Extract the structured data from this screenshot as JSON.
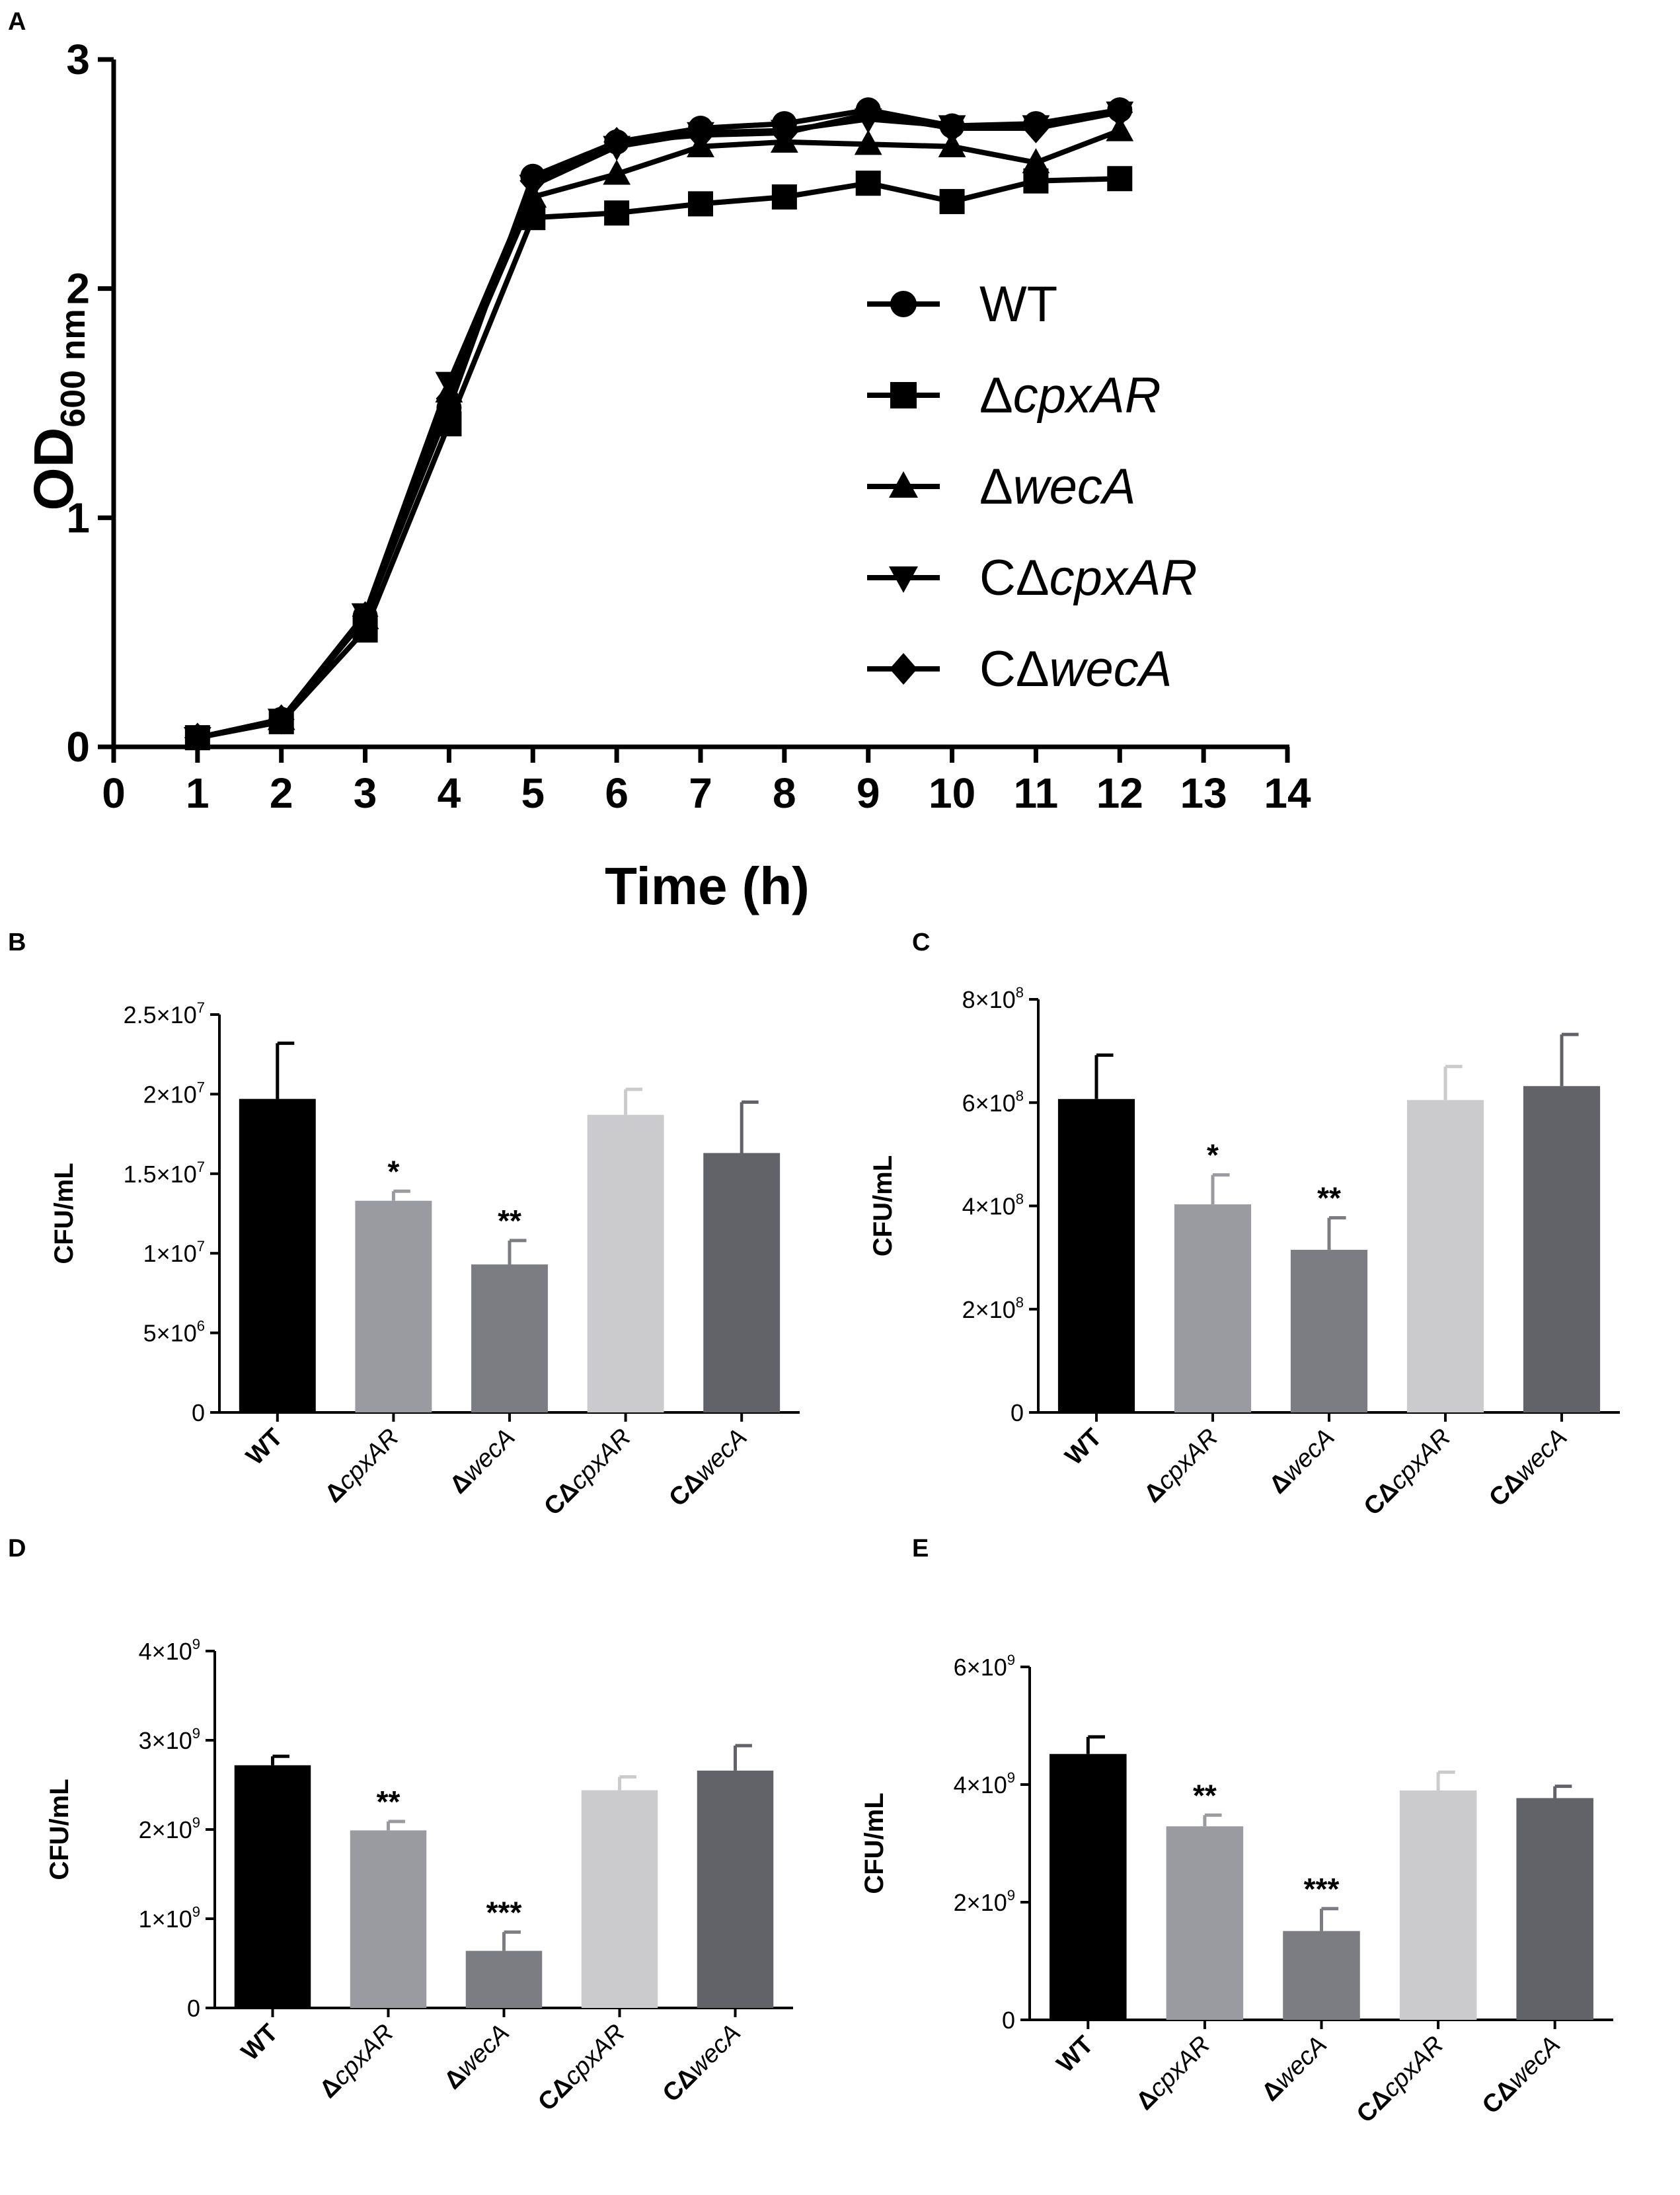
{
  "panel_letters": [
    "A",
    "B",
    "C",
    "D",
    "E"
  ],
  "style": {
    "ink": "#000000",
    "bar_colors": [
      "#000000",
      "#9a9ba0",
      "#7c7d82",
      "#cbcbcd",
      "#626368"
    ]
  },
  "chart_data": [
    {
      "panel": "A",
      "type": "line",
      "title": "",
      "xlabel": "Time (h)",
      "ylabel": {
        "main": "OD",
        "sub": "600 nm"
      },
      "xlim": [
        0,
        14
      ],
      "ylim": [
        0,
        3
      ],
      "xticks": [
        0,
        1,
        2,
        3,
        4,
        5,
        6,
        7,
        8,
        9,
        10,
        11,
        12,
        13,
        14
      ],
      "yticks": [
        0,
        1,
        2,
        3
      ],
      "legend": "right-center",
      "series": [
        {
          "name": "WT",
          "prefix": "",
          "italic": "",
          "marker": "circle",
          "x": [
            1,
            2,
            3,
            4,
            5,
            6,
            7,
            8,
            9,
            10,
            11,
            12
          ],
          "y": [
            0.04,
            0.12,
            0.57,
            1.48,
            2.49,
            2.64,
            2.7,
            2.72,
            2.78,
            2.71,
            2.72,
            2.78
          ]
        },
        {
          "name": "ΔcpxAR",
          "prefix": "Δ",
          "italic": "cpxAR",
          "marker": "square",
          "x": [
            1,
            2,
            3,
            4,
            5,
            6,
            7,
            8,
            9,
            10,
            11,
            12
          ],
          "y": [
            0.04,
            0.11,
            0.51,
            1.41,
            2.31,
            2.33,
            2.37,
            2.4,
            2.46,
            2.38,
            2.47,
            2.48
          ]
        },
        {
          "name": "ΔwecA",
          "prefix": "Δ",
          "italic": "wecA",
          "marker": "triangle-up",
          "x": [
            1,
            2,
            3,
            4,
            5,
            6,
            7,
            8,
            9,
            10,
            11,
            12
          ],
          "y": [
            0.04,
            0.12,
            0.56,
            1.55,
            2.4,
            2.5,
            2.62,
            2.64,
            2.63,
            2.62,
            2.55,
            2.69
          ]
        },
        {
          "name": "CΔcpxAR",
          "prefix": "CΔ",
          "italic": "cpxAR",
          "marker": "triangle-down",
          "x": [
            1,
            2,
            3,
            4,
            5,
            6,
            7,
            8,
            9,
            10,
            11,
            12
          ],
          "y": [
            0.04,
            0.12,
            0.58,
            1.59,
            2.45,
            2.62,
            2.68,
            2.69,
            2.74,
            2.71,
            2.71,
            2.77
          ]
        },
        {
          "name": "CΔwecA",
          "prefix": "CΔ",
          "italic": "wecA",
          "marker": "diamond",
          "x": [
            1,
            2,
            3,
            4,
            5,
            6,
            7,
            8,
            9,
            10,
            11,
            12
          ],
          "y": [
            0.04,
            0.12,
            0.57,
            1.52,
            2.47,
            2.64,
            2.67,
            2.68,
            2.76,
            2.7,
            2.7,
            2.77
          ]
        }
      ]
    },
    {
      "panel": "B",
      "type": "bar",
      "ylabel": "CFU/mL",
      "ylim": [
        0,
        25000000
      ],
      "yticks": [
        {
          "value": 0,
          "mantissa": "0",
          "exp": ""
        },
        {
          "value": 5000000,
          "mantissa": "5×10",
          "exp": "6"
        },
        {
          "value": 10000000,
          "mantissa": "1×10",
          "exp": "7"
        },
        {
          "value": 15000000,
          "mantissa": "1.5×10",
          "exp": "7"
        },
        {
          "value": 20000000,
          "mantissa": "2×10",
          "exp": "7"
        },
        {
          "value": 25000000,
          "mantissa": "2.5×10",
          "exp": "7"
        }
      ],
      "categories": [
        {
          "prefix": "WT",
          "italic": ""
        },
        {
          "prefix": "Δ",
          "italic": "cpxAR"
        },
        {
          "prefix": "Δ",
          "italic": "wecA"
        },
        {
          "prefix": "CΔ",
          "italic": "cpxAR"
        },
        {
          "prefix": "CΔ",
          "italic": "wecA"
        }
      ],
      "values": [
        19700000,
        13300000,
        9300000,
        18700000,
        16300000
      ],
      "errors": [
        3500000,
        600000,
        1500000,
        1600000,
        3200000
      ],
      "significance": [
        "",
        "*",
        "**",
        "",
        ""
      ]
    },
    {
      "panel": "C",
      "type": "bar",
      "ylabel": "CFU/mL",
      "ylim": [
        0,
        800000000
      ],
      "yticks": [
        {
          "value": 0,
          "mantissa": "0",
          "exp": ""
        },
        {
          "value": 200000000,
          "mantissa": "2×10",
          "exp": "8"
        },
        {
          "value": 400000000,
          "mantissa": "4×10",
          "exp": "8"
        },
        {
          "value": 600000000,
          "mantissa": "6×10",
          "exp": "8"
        },
        {
          "value": 800000000,
          "mantissa": "8×10",
          "exp": "8"
        }
      ],
      "categories": [
        {
          "prefix": "WT",
          "italic": ""
        },
        {
          "prefix": "Δ",
          "italic": "cpxAR"
        },
        {
          "prefix": "Δ",
          "italic": "wecA"
        },
        {
          "prefix": "CΔ",
          "italic": "cpxAR"
        },
        {
          "prefix": "CΔ",
          "italic": "wecA"
        }
      ],
      "values": [
        607000000,
        403000000,
        315000000,
        605000000,
        632000000
      ],
      "errors": [
        85000000,
        57000000,
        62000000,
        65000000,
        100000000
      ],
      "significance": [
        "",
        "*",
        "**",
        "",
        ""
      ]
    },
    {
      "panel": "D",
      "type": "bar",
      "ylabel": "CFU/mL",
      "ylim": [
        0,
        4000000000
      ],
      "yticks": [
        {
          "value": 0,
          "mantissa": "0",
          "exp": ""
        },
        {
          "value": 1000000000,
          "mantissa": "1×10",
          "exp": "9"
        },
        {
          "value": 2000000000,
          "mantissa": "2×10",
          "exp": "9"
        },
        {
          "value": 3000000000,
          "mantissa": "3×10",
          "exp": "9"
        },
        {
          "value": 4000000000,
          "mantissa": "4×10",
          "exp": "9"
        }
      ],
      "categories": [
        {
          "prefix": "WT",
          "italic": ""
        },
        {
          "prefix": "Δ",
          "italic": "cpxAR"
        },
        {
          "prefix": "Δ",
          "italic": "wecA"
        },
        {
          "prefix": "CΔ",
          "italic": "cpxAR"
        },
        {
          "prefix": "CΔ",
          "italic": "wecA"
        }
      ],
      "values": [
        2720000000,
        1990000000,
        640000000,
        2440000000,
        2660000000
      ],
      "errors": [
        100000000,
        100000000,
        210000000,
        150000000,
        280000000
      ],
      "significance": [
        "",
        "**",
        "***",
        "",
        ""
      ]
    },
    {
      "panel": "E",
      "type": "bar",
      "ylabel": "CFU/mL",
      "ylim": [
        0,
        6000000000
      ],
      "yticks": [
        {
          "value": 0,
          "mantissa": "0",
          "exp": ""
        },
        {
          "value": 2000000000,
          "mantissa": "2×10",
          "exp": "9"
        },
        {
          "value": 4000000000,
          "mantissa": "4×10",
          "exp": "9"
        },
        {
          "value": 6000000000,
          "mantissa": "6×10",
          "exp": "9"
        }
      ],
      "categories": [
        {
          "prefix": "WT",
          "italic": ""
        },
        {
          "prefix": "Δ",
          "italic": "cpxAR"
        },
        {
          "prefix": "Δ",
          "italic": "wecA"
        },
        {
          "prefix": "CΔ",
          "italic": "cpxAR"
        },
        {
          "prefix": "CΔ",
          "italic": "wecA"
        }
      ],
      "values": [
        4520000000,
        3290000000,
        1510000000,
        3900000000,
        3770000000
      ],
      "errors": [
        290000000,
        190000000,
        380000000,
        310000000,
        200000000
      ],
      "significance": [
        "",
        "**",
        "***",
        "",
        ""
      ]
    }
  ]
}
